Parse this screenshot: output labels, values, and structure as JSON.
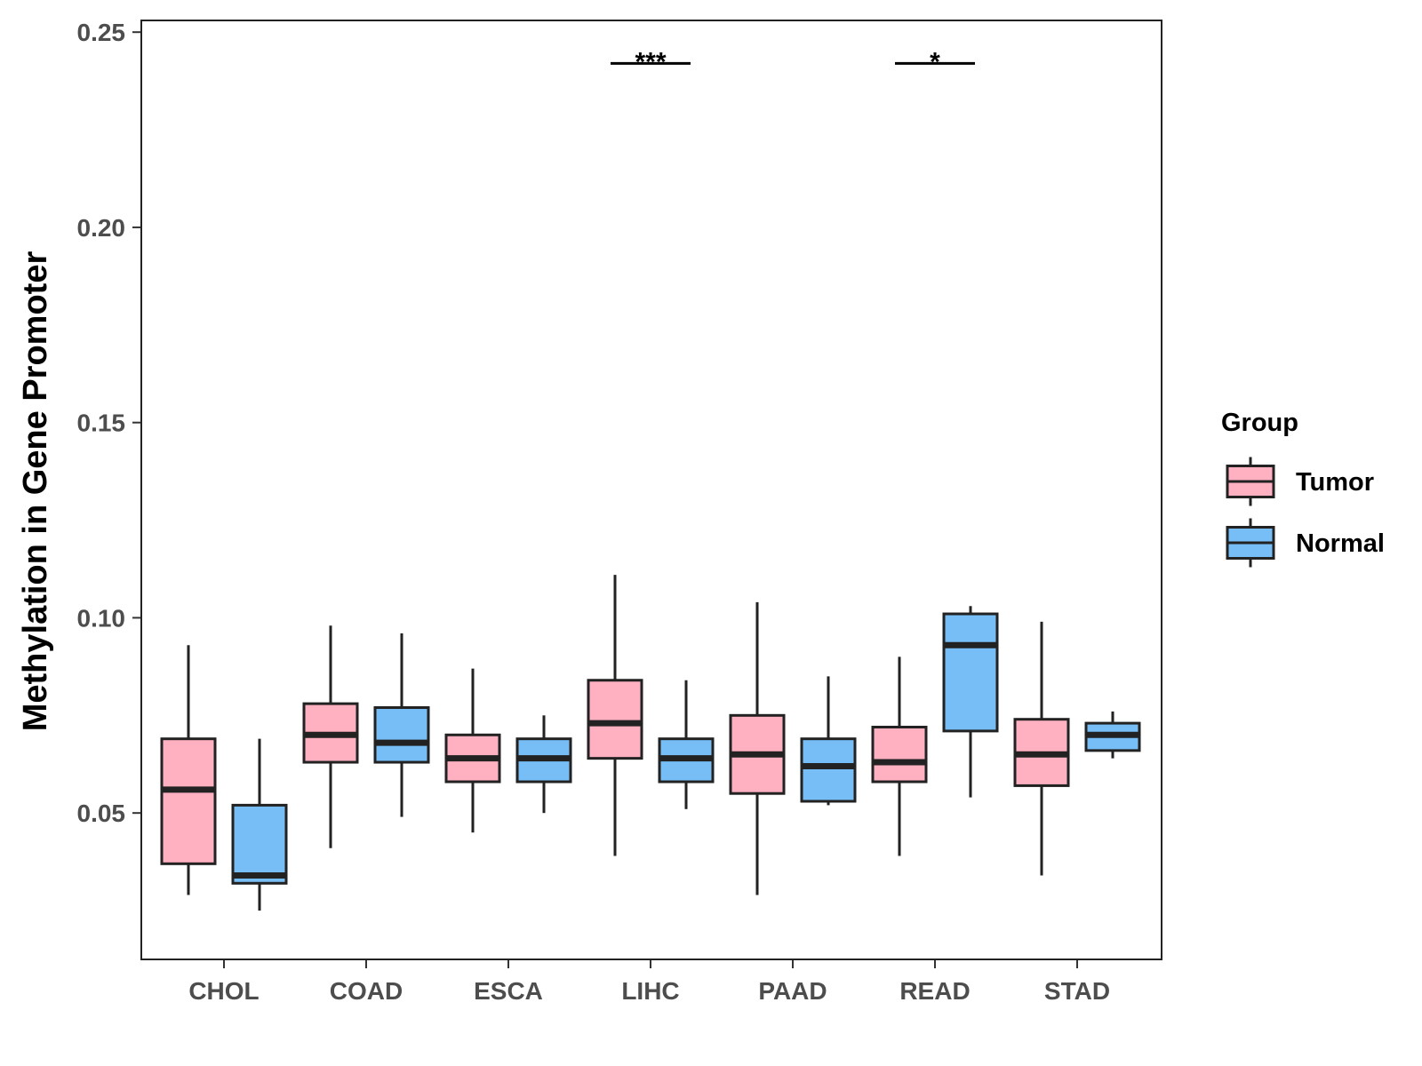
{
  "chart_data": {
    "type": "boxplot",
    "title": "",
    "xlabel": "",
    "ylabel": "Methylation in Gene Promoter",
    "ylim": [
      0.0125,
      0.253
    ],
    "yticks": [
      0.05,
      0.1,
      0.15,
      0.2,
      0.25
    ],
    "ytick_labels": [
      "0.05",
      "0.10",
      "0.15",
      "0.20",
      "0.25"
    ],
    "categories": [
      "CHOL",
      "COAD",
      "ESCA",
      "LIHC",
      "PAAD",
      "READ",
      "STAD"
    ],
    "grid": false,
    "legend": {
      "title": "Group",
      "position": "right",
      "entries": [
        {
          "name": "Tumor",
          "color": "#FFB0C1"
        },
        {
          "name": "Normal",
          "color": "#77BEF6"
        }
      ]
    },
    "series": [
      {
        "name": "Tumor",
        "color": "#FFB0C1",
        "boxes": [
          {
            "min": 0.029,
            "q1": 0.037,
            "median": 0.056,
            "q3": 0.069,
            "max": 0.093
          },
          {
            "min": 0.041,
            "q1": 0.063,
            "median": 0.07,
            "q3": 0.078,
            "max": 0.098
          },
          {
            "min": 0.045,
            "q1": 0.058,
            "median": 0.064,
            "q3": 0.07,
            "max": 0.087
          },
          {
            "min": 0.039,
            "q1": 0.064,
            "median": 0.073,
            "q3": 0.084,
            "max": 0.111
          },
          {
            "min": 0.029,
            "q1": 0.055,
            "median": 0.065,
            "q3": 0.075,
            "max": 0.104
          },
          {
            "min": 0.039,
            "q1": 0.058,
            "median": 0.063,
            "q3": 0.072,
            "max": 0.09
          },
          {
            "min": 0.034,
            "q1": 0.057,
            "median": 0.065,
            "q3": 0.074,
            "max": 0.099
          }
        ]
      },
      {
        "name": "Normal",
        "color": "#77BEF6",
        "boxes": [
          {
            "min": 0.025,
            "q1": 0.032,
            "median": 0.034,
            "q3": 0.052,
            "max": 0.069
          },
          {
            "min": 0.049,
            "q1": 0.063,
            "median": 0.068,
            "q3": 0.077,
            "max": 0.096
          },
          {
            "min": 0.05,
            "q1": 0.058,
            "median": 0.064,
            "q3": 0.069,
            "max": 0.075
          },
          {
            "min": 0.051,
            "q1": 0.058,
            "median": 0.064,
            "q3": 0.069,
            "max": 0.084
          },
          {
            "min": 0.052,
            "q1": 0.053,
            "median": 0.062,
            "q3": 0.069,
            "max": 0.085
          },
          {
            "min": 0.054,
            "q1": 0.071,
            "median": 0.093,
            "q3": 0.101,
            "max": 0.103
          },
          {
            "min": 0.064,
            "q1": 0.066,
            "median": 0.07,
            "q3": 0.073,
            "max": 0.076
          }
        ]
      }
    ],
    "annotations": [
      {
        "category": "LIHC",
        "label": "***",
        "y": 0.242
      },
      {
        "category": "READ",
        "label": "*",
        "y": 0.242
      }
    ]
  }
}
